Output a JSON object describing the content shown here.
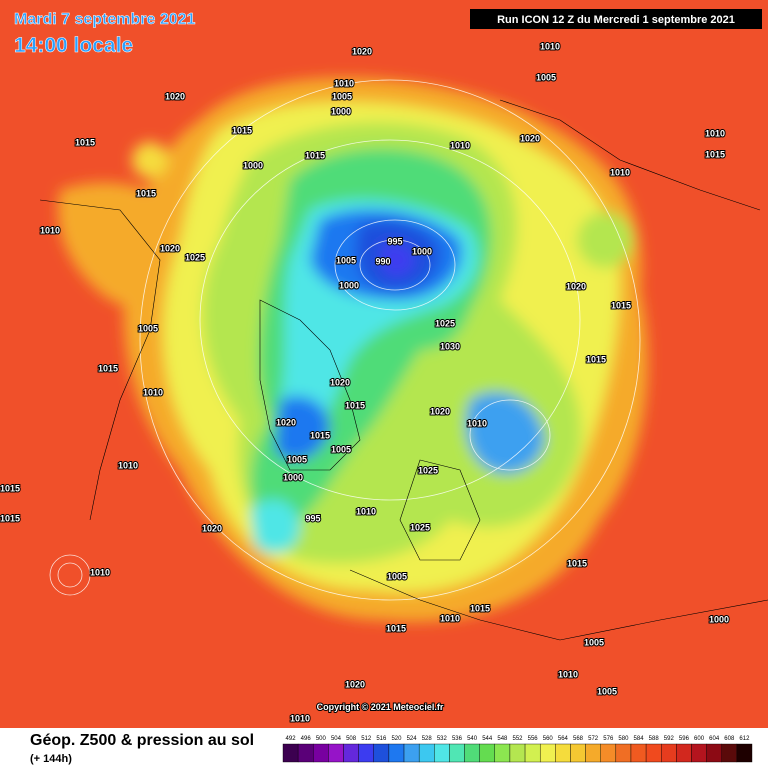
{
  "header": {
    "date": "Mardi 7 septembre 2021",
    "time": "14:00 locale",
    "run": "Run ICON 12 Z du Mercredi 1 septembre 2021"
  },
  "map": {
    "copyright": "Copyright © 2021 Meteociel.fr",
    "isobar_labels": [
      "1020",
      "1010",
      "1005",
      "1020",
      "1010",
      "1005",
      "1000",
      "1015",
      "1015",
      "1010",
      "1020",
      "1010",
      "1015",
      "1000",
      "1015",
      "1010",
      "1015",
      "1010",
      "1020",
      "1025",
      "995",
      "1000",
      "990",
      "1005",
      "1000",
      "1020",
      "1015",
      "1005",
      "1025",
      "1030",
      "1015",
      "1015",
      "1010",
      "1020",
      "1015",
      "1020",
      "1010",
      "1020",
      "1015",
      "1005",
      "1005",
      "1000",
      "1010",
      "1015",
      "1015",
      "1020",
      "995",
      "1010",
      "1025",
      "1025",
      "1005",
      "1015",
      "1015",
      "1010",
      "1015",
      "1005",
      "1010",
      "1005",
      "1010",
      "1020",
      "1000",
      "1010"
    ]
  },
  "footer": {
    "title": "Géop. Z500 & pression au sol",
    "lead": "(+ 144h)",
    "legend": {
      "levels": [
        492,
        496,
        500,
        504,
        508,
        512,
        516,
        520,
        524,
        528,
        532,
        536,
        540,
        544,
        548,
        552,
        556,
        560,
        564,
        568,
        572,
        576,
        580,
        584,
        588,
        592,
        596,
        600,
        604,
        608,
        612
      ],
      "colors": [
        "#3c0050",
        "#5a0078",
        "#7800a0",
        "#9614c8",
        "#6428dc",
        "#3c3cf0",
        "#1e50dc",
        "#1e78f0",
        "#3ca0f0",
        "#3cc8f0",
        "#50e6e6",
        "#50e6b4",
        "#50dc78",
        "#64dc50",
        "#8ce650",
        "#b4e650",
        "#d2f050",
        "#f0f050",
        "#f5dc3c",
        "#f5c832",
        "#f5aa2a",
        "#f58c28",
        "#f06e24",
        "#f05a20",
        "#f04a1e",
        "#e63c1e",
        "#d2281e",
        "#b4141e",
        "#8c0a14",
        "#5a0a0a",
        "#1e0000"
      ]
    }
  }
}
